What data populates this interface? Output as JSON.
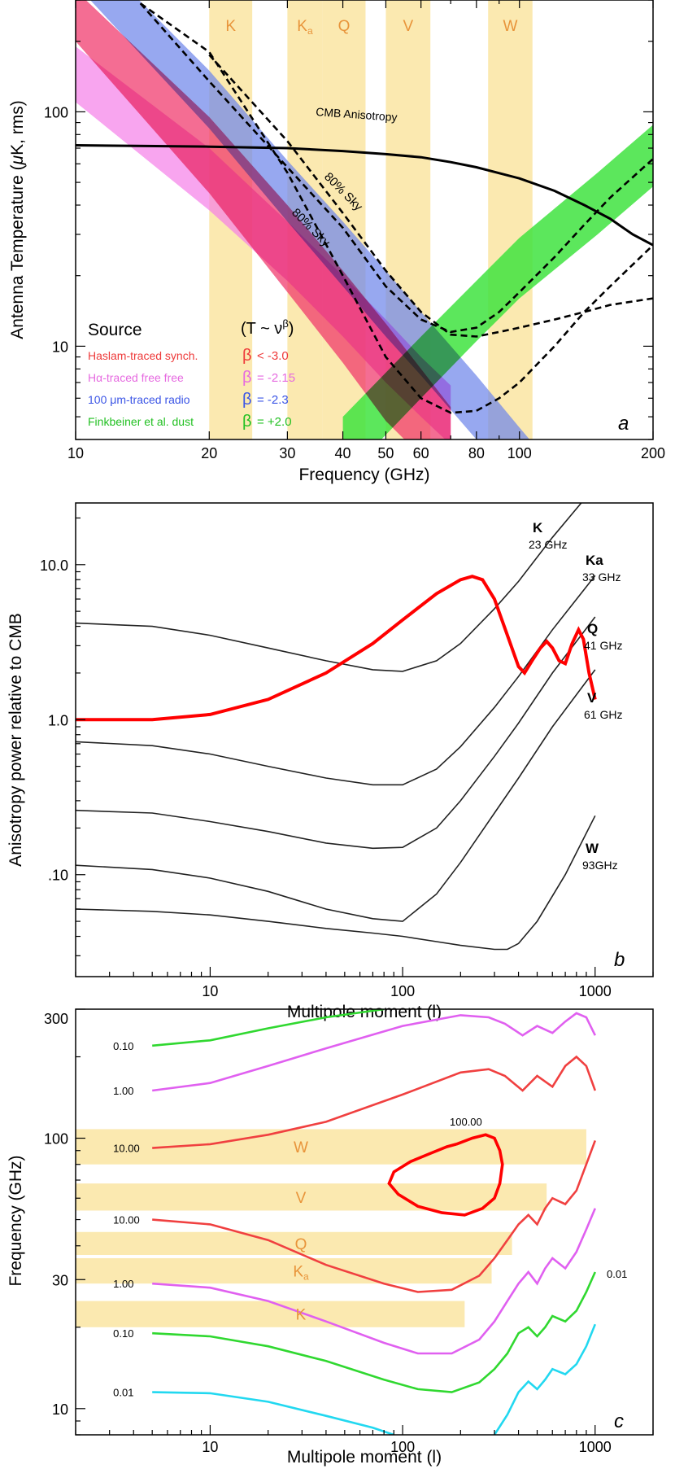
{
  "figure": {
    "colors": {
      "band": "#fbe9b0",
      "band_label": "#e8943a",
      "cmb": "#000000",
      "synch": "#f0356a",
      "freefree": "#f47be8",
      "radio": "#6f86ea",
      "dust": "#3fe33f",
      "cyan": "#22d8f0",
      "curve_red": "#f04040",
      "curve_green": "#30d830",
      "curve_magenta": "#e060f0",
      "highlight_red": "#ff0000"
    }
  },
  "chart_data": [
    {
      "panel": "a",
      "type": "area",
      "title": "",
      "xlabel": "Frequency (GHz)",
      "ylabel_prefix": "Antenna Temperature (",
      "ylabel_mu": "μ",
      "ylabel_suffix": "K, rms)",
      "xscale": "log",
      "yscale": "log",
      "xlim": [
        10,
        200
      ],
      "ylim": [
        4,
        300
      ],
      "x_ticks": [
        10,
        20,
        30,
        40,
        50,
        60,
        80,
        100,
        200
      ],
      "x_tick_labels": [
        "10",
        "20",
        "30",
        "40",
        "50",
        "60",
        "80",
        "100",
        "200"
      ],
      "y_ticks": [
        10,
        100
      ],
      "y_tick_labels": [
        "10",
        "100"
      ],
      "bands": [
        {
          "label": "K",
          "sub": "",
          "range": [
            20,
            25
          ]
        },
        {
          "label": "K",
          "sub": "a",
          "range": [
            30,
            36
          ]
        },
        {
          "label": "Q",
          "sub": "",
          "range": [
            36,
            45
          ]
        },
        {
          "label": "V",
          "sub": "",
          "range": [
            50,
            63
          ]
        },
        {
          "label": "W",
          "sub": "",
          "range": [
            85,
            107
          ]
        }
      ],
      "cmb_curve": {
        "label": "CMB Anisotropy",
        "x": [
          10,
          20,
          30,
          40,
          50,
          60,
          70,
          80,
          100,
          120,
          140,
          160,
          180,
          200
        ],
        "y": [
          72,
          71,
          70,
          68,
          66,
          64,
          61,
          58,
          52,
          46,
          40,
          35,
          30,
          27
        ]
      },
      "sky_curves": [
        {
          "label": "80% Sky",
          "x": [
            14,
            20,
            30,
            40,
            50,
            60,
            70,
            80,
            90,
            100,
            120,
            140,
            160,
            200
          ],
          "y": [
            290,
            135,
            58,
            32,
            18,
            13,
            11.5,
            12,
            14,
            17,
            24,
            33,
            43,
            63
          ]
        },
        {
          "label": "80% Sky",
          "x": [
            14,
            20,
            30,
            40,
            50,
            60,
            70,
            80,
            90,
            100,
            120,
            140,
            160,
            200
          ],
          "y": [
            290,
            180,
            55,
            20,
            9,
            6,
            5.2,
            5.3,
            6,
            7,
            10,
            14,
            18,
            27
          ]
        },
        {
          "label": "",
          "x": [
            20,
            30,
            40,
            50,
            60,
            70,
            80,
            90,
            100,
            120,
            140,
            160,
            200
          ],
          "y": [
            175,
            75,
            37,
            21,
            14,
            11.2,
            11,
            11.5,
            12,
            13,
            14,
            15,
            16
          ]
        }
      ],
      "components": [
        {
          "name": "Haslam-traced synch.",
          "beta": "< -3.0",
          "color_key": "synch",
          "x": [
            10,
            20,
            30,
            40,
            50,
            60,
            70
          ],
          "upper": [
            330,
            95,
            40,
            21,
            12.5,
            8,
            5.5
          ],
          "lower": [
            200,
            45,
            17,
            8.5,
            4.8,
            3.4,
            2.5
          ]
        },
        {
          "name": "Hα-traced free free",
          "beta": "= -2.15",
          "color_key": "freefree",
          "x": [
            10,
            20,
            30,
            40,
            50,
            60,
            70
          ],
          "upper": [
            190,
            70,
            34,
            20,
            13,
            9,
            6.8
          ],
          "lower": [
            110,
            38,
            19,
            11,
            7,
            5,
            3.8
          ]
        },
        {
          "name": "100 μm-traced radio",
          "beta": "= -2.3",
          "color_key": "radio",
          "x": [
            10,
            20,
            30,
            40,
            50,
            60,
            80,
            100,
            120
          ],
          "upper": [
            560,
            150,
            62,
            34,
            21,
            14,
            7.5,
            4.5,
            3
          ],
          "lower": [
            350,
            85,
            34,
            18,
            11,
            7.5,
            4,
            2.4,
            1.6
          ]
        },
        {
          "name": "Finkbeiner et al. dust",
          "beta": "= +2.0",
          "color_key": "dust",
          "x": [
            40,
            60,
            80,
            100,
            150,
            200
          ],
          "upper": [
            5,
            11,
            19,
            29,
            55,
            88
          ],
          "lower": [
            2.7,
            6,
            10.5,
            16,
            30,
            48
          ]
        }
      ],
      "legend": {
        "title": "Source",
        "formula_prefix": "(T ~ ν",
        "formula_power": "β",
        "formula_suffix": ")",
        "beta_symbol": "β"
      },
      "panel_letter": "a"
    },
    {
      "panel": "b",
      "type": "line",
      "xlabel": "Multipole moment (l)",
      "ylabel": "Anisotropy power relative to CMB",
      "xscale": "log",
      "yscale": "log",
      "xlim": [
        2,
        2000
      ],
      "ylim": [
        0.022,
        25
      ],
      "x_ticks": [
        10,
        100,
        1000
      ],
      "x_tick_labels": [
        "10",
        "100",
        "1000"
      ],
      "y_ticks": [
        0.1,
        1,
        10
      ],
      "y_tick_labels": [
        ".10",
        "1.0",
        "10.0"
      ],
      "cmb_curve": {
        "x": [
          2,
          5,
          10,
          20,
          40,
          70,
          100,
          150,
          200,
          230,
          260,
          300,
          350,
          400,
          430,
          470,
          520,
          560,
          600,
          650,
          700,
          760,
          820,
          870,
          930,
          1000
        ],
        "y": [
          1.0,
          1.0,
          1.08,
          1.35,
          2.0,
          3.1,
          4.4,
          6.5,
          8.0,
          8.4,
          8.0,
          6.0,
          3.5,
          2.2,
          2.0,
          2.4,
          2.9,
          3.2,
          2.9,
          2.4,
          2.3,
          3.1,
          3.8,
          3.3,
          2.0,
          1.35
        ]
      },
      "series": [
        {
          "name": "K",
          "freq": "23 GHz",
          "x": [
            2,
            5,
            10,
            20,
            40,
            70,
            100,
            150,
            200,
            300,
            400,
            600,
            1000
          ],
          "y": [
            4.2,
            4.0,
            3.5,
            2.9,
            2.4,
            2.1,
            2.05,
            2.4,
            3.1,
            5.2,
            7.8,
            15,
            32
          ]
        },
        {
          "name": "Ka",
          "freq": "33 GHz",
          "x": [
            2,
            5,
            10,
            20,
            40,
            70,
            100,
            150,
            200,
            300,
            400,
            600,
            1000
          ],
          "y": [
            0.72,
            0.68,
            0.6,
            0.5,
            0.42,
            0.38,
            0.38,
            0.48,
            0.67,
            1.2,
            1.9,
            3.8,
            8.5
          ]
        },
        {
          "name": "Q",
          "freq": "41 GHz",
          "x": [
            2,
            5,
            10,
            20,
            40,
            70,
            100,
            150,
            200,
            300,
            400,
            600,
            1000
          ],
          "y": [
            0.26,
            0.25,
            0.22,
            0.19,
            0.16,
            0.148,
            0.15,
            0.2,
            0.3,
            0.58,
            0.95,
            2.0,
            4.6
          ]
        },
        {
          "name": "V",
          "freq": "61 GHz",
          "x": [
            2,
            5,
            10,
            20,
            40,
            70,
            100,
            150,
            200,
            300,
            400,
            600,
            1000
          ],
          "y": [
            0.115,
            0.108,
            0.095,
            0.078,
            0.06,
            0.052,
            0.05,
            0.075,
            0.12,
            0.25,
            0.42,
            0.9,
            2.1
          ]
        },
        {
          "name": "W",
          "freq": "93GHz",
          "x": [
            2,
            5,
            10,
            20,
            40,
            70,
            100,
            150,
            200,
            300,
            350,
            400,
            500,
            700,
            1000
          ],
          "y": [
            0.06,
            0.058,
            0.055,
            0.05,
            0.045,
            0.042,
            0.04,
            0.037,
            0.035,
            0.033,
            0.033,
            0.036,
            0.05,
            0.1,
            0.24
          ]
        }
      ],
      "panel_letter": "b"
    },
    {
      "panel": "c",
      "type": "line",
      "xlabel": "Multipole moment (l)",
      "ylabel": "Frequency (GHz)",
      "xscale": "log",
      "yscale": "log",
      "xlim": [
        2,
        2000
      ],
      "ylim": [
        8,
        300
      ],
      "x_ticks": [
        10,
        100,
        1000
      ],
      "x_tick_labels": [
        "10",
        "100",
        "1000"
      ],
      "y_ticks": [
        10,
        30,
        100,
        300
      ],
      "y_tick_labels": [
        "10",
        "30",
        "100",
        "300"
      ],
      "bands": [
        {
          "label": "W",
          "sub": "",
          "range": [
            80,
            108
          ],
          "xmax": 900
        },
        {
          "label": "V",
          "sub": "",
          "range": [
            54,
            68
          ],
          "xmax": 560
        },
        {
          "label": "Q",
          "sub": "",
          "range": [
            37,
            45
          ],
          "xmax": 370
        },
        {
          "label": "K",
          "sub": "a",
          "range": [
            29,
            36
          ],
          "xmax": 290
        },
        {
          "label": "K",
          "sub": "",
          "range": [
            20,
            25
          ],
          "xmax": 210
        }
      ],
      "contours": [
        {
          "label": "0.10",
          "color_key": "curve_green",
          "x": [
            5,
            10,
            20,
            40,
            80
          ],
          "y": [
            220,
            230,
            255,
            280,
            300
          ]
        },
        {
          "label": "1.00",
          "color_key": "curve_magenta",
          "x": [
            5,
            10,
            20,
            40,
            100,
            200,
            280,
            340,
            420,
            500,
            600,
            700,
            800,
            900,
            1000
          ],
          "y": [
            150,
            160,
            185,
            215,
            260,
            285,
            280,
            265,
            240,
            260,
            245,
            270,
            290,
            280,
            240
          ]
        },
        {
          "label": "10.00",
          "color_key": "curve_red",
          "x": [
            5,
            10,
            20,
            40,
            100,
            200,
            280,
            340,
            420,
            500,
            600,
            700,
            800,
            900,
            1000
          ],
          "y": [
            92,
            95,
            103,
            115,
            145,
            175,
            180,
            170,
            150,
            170,
            155,
            185,
            200,
            185,
            150
          ]
        },
        {
          "label": "10.00",
          "color_key": "curve_red",
          "x": [
            5,
            10,
            20,
            40,
            80,
            120,
            180,
            250,
            300,
            350,
            400,
            450,
            500,
            550,
            600,
            700,
            800,
            900,
            1000
          ],
          "y": [
            50,
            48,
            42,
            34,
            29,
            27,
            27.5,
            31,
            36,
            42,
            48,
            52,
            48,
            55,
            60,
            57,
            64,
            80,
            98
          ]
        },
        {
          "label": "1.00",
          "color_key": "curve_magenta",
          "x": [
            5,
            10,
            20,
            40,
            80,
            120,
            180,
            250,
            300,
            350,
            400,
            450,
            500,
            550,
            600,
            700,
            800,
            900,
            1000
          ],
          "y": [
            29,
            28,
            25,
            21,
            17.5,
            16,
            16,
            18,
            21,
            25,
            29,
            32,
            29,
            33,
            36,
            33,
            38,
            46,
            55
          ]
        },
        {
          "label": "0.10",
          "color_key": "curve_green",
          "x": [
            5,
            10,
            20,
            40,
            80,
            120,
            180,
            250,
            300,
            350,
            400,
            450,
            500,
            550,
            600,
            700,
            800,
            900,
            1000
          ],
          "y": [
            19,
            18.5,
            17,
            15,
            12.8,
            11.8,
            11.5,
            12.5,
            14,
            16,
            19,
            20,
            18.5,
            20,
            22,
            21,
            23,
            27,
            32
          ]
        },
        {
          "label": "0.01",
          "color_key": "cyan",
          "x": [
            5,
            10,
            20,
            40,
            70,
            90
          ],
          "y": [
            11.5,
            11.4,
            10.6,
            9.4,
            8.5,
            8.0
          ]
        },
        {
          "label": "0.01",
          "color_key": "cyan",
          "x": [
            300,
            350,
            400,
            450,
            500,
            550,
            600,
            700,
            800,
            900,
            1000
          ],
          "y": [
            8.0,
            9.5,
            11.5,
            12.6,
            11.8,
            12.8,
            14,
            13.4,
            14.6,
            17,
            20.5
          ]
        }
      ],
      "highlight_contour": {
        "label": "100.00",
        "color_key": "highlight_red",
        "x": [
          190,
          230,
          270,
          300,
          320,
          330,
          320,
          300,
          260,
          210,
          160,
          120,
          95,
          85,
          90,
          110,
          140,
          170,
          190
        ],
        "y": [
          95,
          100,
          103,
          100,
          90,
          80,
          68,
          60,
          55,
          52,
          53,
          56,
          62,
          68,
          75,
          82,
          88,
          93,
          95
        ]
      },
      "panel_letter": "c"
    }
  ]
}
